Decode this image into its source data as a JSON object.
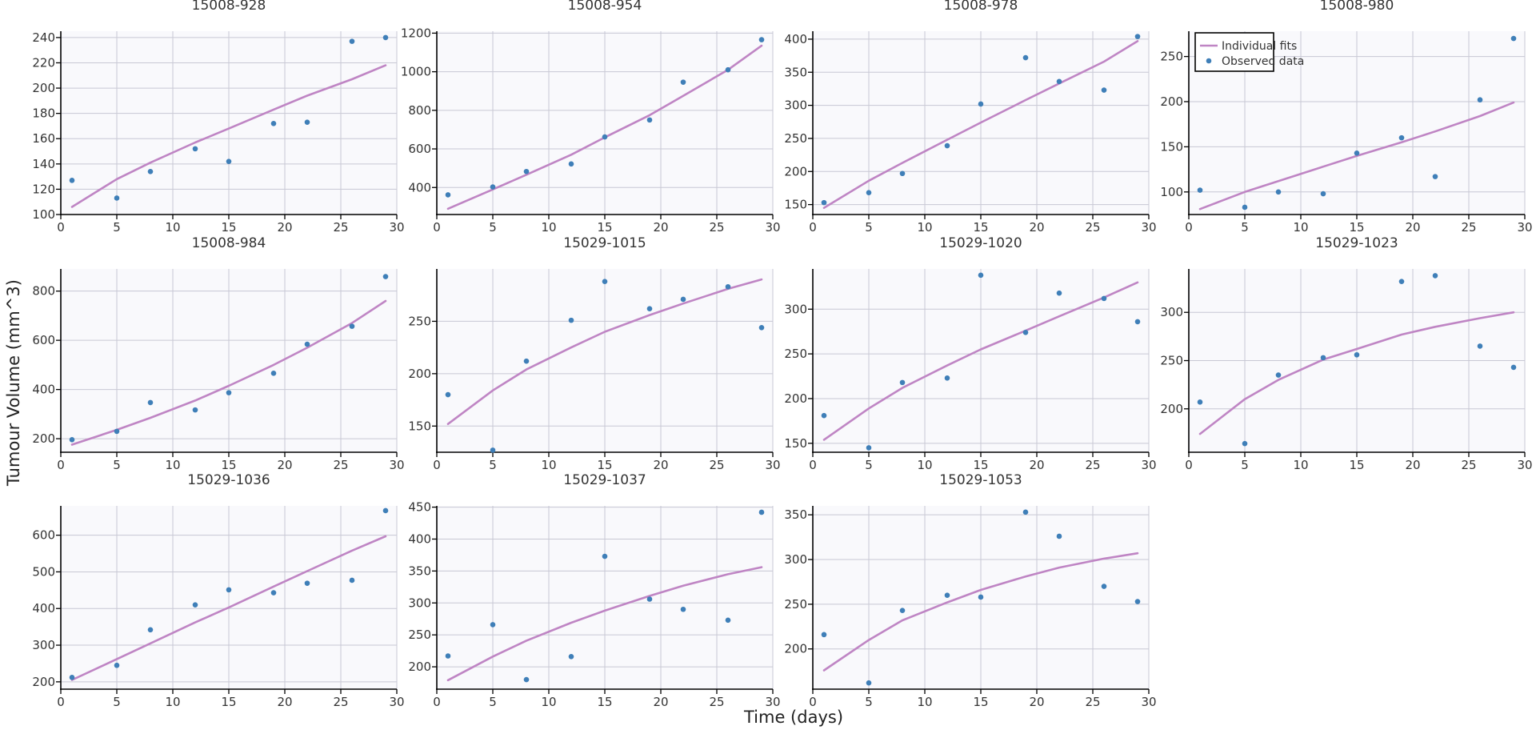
{
  "figure": {
    "xlabel": "Time (days)",
    "ylabel": "Tumour Volume (mm^3)"
  },
  "legend": {
    "fit_label": "Individual fits",
    "data_label": "Observed data",
    "placement": "top-left of panel 15008-980"
  },
  "colors": {
    "fit": "#bf85c4",
    "data": "#3f7fb8",
    "plot_bg": "#f9f9fc",
    "grid": "#c8c8d4"
  },
  "chart_data": [
    {
      "type": "scatter",
      "title": "15008-928",
      "xlim": [
        0,
        30
      ],
      "ylim": [
        100,
        245
      ],
      "xticks": [
        0,
        5,
        10,
        15,
        20,
        25,
        30
      ],
      "yticks": [
        100,
        120,
        140,
        160,
        180,
        200,
        220,
        240
      ],
      "x": [
        1,
        5,
        8,
        12,
        15,
        19,
        22,
        26,
        29
      ],
      "y": [
        127,
        113,
        134,
        152,
        142,
        172,
        173,
        237,
        240
      ],
      "fit": [
        [
          1,
          106
        ],
        [
          5,
          128
        ],
        [
          8,
          141
        ],
        [
          12,
          157
        ],
        [
          15,
          168
        ],
        [
          19,
          183
        ],
        [
          22,
          194
        ],
        [
          26,
          207
        ],
        [
          29,
          218
        ]
      ]
    },
    {
      "type": "scatter",
      "title": "15008-954",
      "xlim": [
        0,
        30
      ],
      "ylim": [
        260,
        1210
      ],
      "xticks": [
        0,
        5,
        10,
        15,
        20,
        25,
        30
      ],
      "yticks": [
        400,
        600,
        800,
        1000,
        1200
      ],
      "x": [
        1,
        5,
        8,
        12,
        15,
        19,
        22,
        26,
        29
      ],
      "y": [
        362,
        403,
        483,
        522,
        662,
        750,
        946,
        1010,
        1166
      ],
      "fit": [
        [
          1,
          290
        ],
        [
          5,
          390
        ],
        [
          8,
          466
        ],
        [
          12,
          570
        ],
        [
          15,
          660
        ],
        [
          19,
          775
        ],
        [
          22,
          875
        ],
        [
          26,
          1010
        ],
        [
          29,
          1135
        ]
      ]
    },
    {
      "type": "scatter",
      "title": "15008-978",
      "xlim": [
        0,
        30
      ],
      "ylim": [
        135,
        412
      ],
      "xticks": [
        0,
        5,
        10,
        15,
        20,
        25,
        30
      ],
      "yticks": [
        150,
        200,
        250,
        300,
        350,
        400
      ],
      "x": [
        1,
        5,
        8,
        12,
        15,
        19,
        22,
        26,
        29
      ],
      "y": [
        153,
        168,
        197,
        239,
        302,
        372,
        336,
        323,
        404
      ],
      "fit": [
        [
          1,
          145
        ],
        [
          5,
          186
        ],
        [
          8,
          213
        ],
        [
          12,
          248
        ],
        [
          15,
          274
        ],
        [
          19,
          308
        ],
        [
          22,
          333
        ],
        [
          26,
          366
        ],
        [
          29,
          397
        ]
      ]
    },
    {
      "type": "scatter",
      "title": "15008-980",
      "xlim": [
        0,
        30
      ],
      "ylim": [
        75,
        278
      ],
      "xticks": [
        0,
        5,
        10,
        15,
        20,
        25,
        30
      ],
      "yticks": [
        100,
        150,
        200,
        250
      ],
      "x": [
        1,
        5,
        8,
        12,
        15,
        19,
        22,
        26,
        29
      ],
      "y": [
        102,
        83,
        100,
        98,
        143,
        160,
        117,
        202,
        270
      ],
      "fit": [
        [
          1,
          81
        ],
        [
          5,
          100
        ],
        [
          8,
          112
        ],
        [
          12,
          128
        ],
        [
          15,
          140
        ],
        [
          19,
          155
        ],
        [
          22,
          167
        ],
        [
          26,
          184
        ],
        [
          29,
          199
        ]
      ]
    },
    {
      "type": "scatter",
      "title": "15008-984",
      "xlim": [
        0,
        30
      ],
      "ylim": [
        145,
        890
      ],
      "xticks": [
        0,
        5,
        10,
        15,
        20,
        25,
        30
      ],
      "yticks": [
        200,
        400,
        600,
        800
      ],
      "x": [
        1,
        5,
        8,
        12,
        15,
        19,
        22,
        26,
        29
      ],
      "y": [
        196,
        230,
        347,
        317,
        387,
        466,
        584,
        657,
        859
      ],
      "fit": [
        [
          1,
          176
        ],
        [
          5,
          236
        ],
        [
          8,
          285
        ],
        [
          12,
          355
        ],
        [
          15,
          415
        ],
        [
          19,
          500
        ],
        [
          22,
          570
        ],
        [
          26,
          670
        ],
        [
          29,
          760
        ]
      ]
    },
    {
      "type": "scatter",
      "title": "15029-1015",
      "xlim": [
        0,
        30
      ],
      "ylim": [
        125,
        300
      ],
      "xticks": [
        0,
        5,
        10,
        15,
        20,
        25,
        30
      ],
      "yticks": [
        150,
        200,
        250
      ],
      "x": [
        1,
        5,
        8,
        12,
        15,
        19,
        22,
        26,
        29
      ],
      "y": [
        180,
        127,
        212,
        251,
        288,
        262,
        271,
        283,
        244
      ],
      "fit": [
        [
          1,
          152
        ],
        [
          5,
          184
        ],
        [
          8,
          204
        ],
        [
          12,
          225
        ],
        [
          15,
          240
        ],
        [
          19,
          256
        ],
        [
          22,
          267
        ],
        [
          26,
          281
        ],
        [
          29,
          290
        ]
      ]
    },
    {
      "type": "scatter",
      "title": "15029-1020",
      "xlim": [
        0,
        30
      ],
      "ylim": [
        140,
        345
      ],
      "xticks": [
        0,
        5,
        10,
        15,
        20,
        25,
        30
      ],
      "yticks": [
        150,
        200,
        250,
        300
      ],
      "x": [
        1,
        5,
        8,
        12,
        15,
        19,
        22,
        26,
        29
      ],
      "y": [
        181,
        145,
        218,
        223,
        338,
        274,
        318,
        312,
        286
      ],
      "fit": [
        [
          1,
          154
        ],
        [
          5,
          189
        ],
        [
          8,
          212
        ],
        [
          12,
          237
        ],
        [
          15,
          255
        ],
        [
          19,
          276
        ],
        [
          22,
          292
        ],
        [
          26,
          313
        ],
        [
          29,
          330
        ]
      ]
    },
    {
      "type": "scatter",
      "title": "15029-1023",
      "xlim": [
        0,
        30
      ],
      "ylim": [
        155,
        345
      ],
      "xticks": [
        0,
        5,
        10,
        15,
        20,
        25,
        30
      ],
      "yticks": [
        200,
        250,
        300
      ],
      "x": [
        1,
        5,
        8,
        12,
        15,
        19,
        22,
        26,
        29
      ],
      "y": [
        207,
        164,
        235,
        253,
        256,
        332,
        338,
        265,
        243
      ],
      "fit": [
        [
          1,
          174
        ],
        [
          5,
          210
        ],
        [
          8,
          230
        ],
        [
          12,
          251
        ],
        [
          15,
          262
        ],
        [
          19,
          277
        ],
        [
          22,
          285
        ],
        [
          26,
          294
        ],
        [
          29,
          300
        ]
      ]
    },
    {
      "type": "scatter",
      "title": "15029-1036",
      "xlim": [
        0,
        30
      ],
      "ylim": [
        180,
        680
      ],
      "xticks": [
        0,
        5,
        10,
        15,
        20,
        25,
        30
      ],
      "yticks": [
        200,
        300,
        400,
        500,
        600
      ],
      "x": [
        1,
        5,
        8,
        12,
        15,
        19,
        22,
        26,
        29
      ],
      "y": [
        212,
        245,
        342,
        410,
        451,
        443,
        469,
        477,
        667
      ],
      "fit": [
        [
          1,
          205
        ],
        [
          5,
          262
        ],
        [
          8,
          305
        ],
        [
          12,
          362
        ],
        [
          15,
          403
        ],
        [
          19,
          460
        ],
        [
          22,
          502
        ],
        [
          26,
          558
        ],
        [
          29,
          597
        ]
      ]
    },
    {
      "type": "scatter",
      "title": "15029-1037",
      "xlim": [
        0,
        30
      ],
      "ylim": [
        165,
        452
      ],
      "xticks": [
        0,
        5,
        10,
        15,
        20,
        25,
        30
      ],
      "yticks": [
        200,
        250,
        300,
        350,
        400,
        450
      ],
      "x": [
        1,
        5,
        8,
        12,
        15,
        19,
        22,
        26,
        29
      ],
      "y": [
        217,
        266,
        180,
        216,
        373,
        306,
        290,
        273,
        442
      ],
      "fit": [
        [
          1,
          179
        ],
        [
          5,
          216
        ],
        [
          8,
          241
        ],
        [
          12,
          269
        ],
        [
          15,
          288
        ],
        [
          19,
          311
        ],
        [
          22,
          327
        ],
        [
          26,
          345
        ],
        [
          29,
          356
        ]
      ]
    },
    {
      "type": "scatter",
      "title": "15029-1053",
      "xlim": [
        0,
        30
      ],
      "ylim": [
        155,
        360
      ],
      "xticks": [
        0,
        5,
        10,
        15,
        20,
        25,
        30
      ],
      "yticks": [
        200,
        250,
        300,
        350
      ],
      "x": [
        1,
        5,
        8,
        12,
        15,
        19,
        22,
        26,
        29
      ],
      "y": [
        216,
        162,
        243,
        260,
        258,
        353,
        326,
        270,
        253
      ],
      "fit": [
        [
          1,
          176
        ],
        [
          5,
          210
        ],
        [
          8,
          232
        ],
        [
          12,
          252
        ],
        [
          15,
          266
        ],
        [
          19,
          281
        ],
        [
          22,
          291
        ],
        [
          26,
          301
        ],
        [
          29,
          307
        ]
      ]
    }
  ]
}
